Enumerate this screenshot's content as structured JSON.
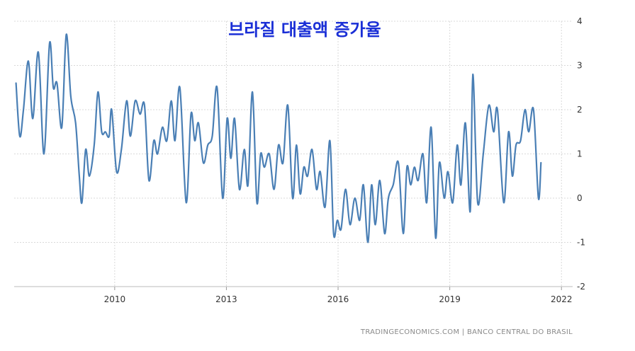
{
  "chart_data": {
    "type": "line",
    "title": "브라질 대출액 증가율",
    "xlabel": "",
    "ylabel": "",
    "x_ticks": [
      "2010",
      "2013",
      "2016",
      "2019",
      "2022"
    ],
    "y_ticks": [
      "-2",
      "-1",
      "0",
      "1",
      "2",
      "3",
      "4"
    ],
    "xlim": [
      2007.3,
      2022.3
    ],
    "ylim": [
      -2,
      4
    ],
    "grid": true,
    "y_axis_side": "right",
    "line_color": "#4a7fb5",
    "series": [
      {
        "values": [
          [
            2007.35,
            2.6
          ],
          [
            2007.45,
            1.4
          ],
          [
            2007.55,
            2.0
          ],
          [
            2007.68,
            3.1
          ],
          [
            2007.8,
            1.8
          ],
          [
            2007.95,
            3.3
          ],
          [
            2008.1,
            1.0
          ],
          [
            2008.25,
            3.5
          ],
          [
            2008.35,
            2.5
          ],
          [
            2008.45,
            2.6
          ],
          [
            2008.58,
            1.6
          ],
          [
            2008.7,
            3.7
          ],
          [
            2008.82,
            2.3
          ],
          [
            2008.95,
            1.7
          ],
          [
            2009.05,
            0.5
          ],
          [
            2009.12,
            -0.1
          ],
          [
            2009.22,
            1.1
          ],
          [
            2009.32,
            0.5
          ],
          [
            2009.45,
            1.2
          ],
          [
            2009.55,
            2.4
          ],
          [
            2009.65,
            1.5
          ],
          [
            2009.75,
            1.5
          ],
          [
            2009.85,
            1.4
          ],
          [
            2009.92,
            2.0
          ],
          [
            2010.05,
            0.6
          ],
          [
            2010.18,
            1.1
          ],
          [
            2010.32,
            2.2
          ],
          [
            2010.42,
            1.4
          ],
          [
            2010.55,
            2.2
          ],
          [
            2010.68,
            1.9
          ],
          [
            2010.8,
            2.1
          ],
          [
            2010.92,
            0.4
          ],
          [
            2011.05,
            1.3
          ],
          [
            2011.15,
            1.0
          ],
          [
            2011.28,
            1.6
          ],
          [
            2011.4,
            1.3
          ],
          [
            2011.52,
            2.2
          ],
          [
            2011.62,
            1.3
          ],
          [
            2011.75,
            2.5
          ],
          [
            2011.92,
            -0.1
          ],
          [
            2012.05,
            1.9
          ],
          [
            2012.15,
            1.3
          ],
          [
            2012.25,
            1.7
          ],
          [
            2012.38,
            0.8
          ],
          [
            2012.5,
            1.2
          ],
          [
            2012.62,
            1.4
          ],
          [
            2012.75,
            2.5
          ],
          [
            2012.9,
            0.0
          ],
          [
            2013.02,
            1.8
          ],
          [
            2013.12,
            0.9
          ],
          [
            2013.22,
            1.8
          ],
          [
            2013.35,
            0.2
          ],
          [
            2013.48,
            1.1
          ],
          [
            2013.58,
            0.3
          ],
          [
            2013.7,
            2.4
          ],
          [
            2013.82,
            -0.1
          ],
          [
            2013.92,
            1.0
          ],
          [
            2014.02,
            0.7
          ],
          [
            2014.15,
            1.0
          ],
          [
            2014.28,
            0.2
          ],
          [
            2014.4,
            1.2
          ],
          [
            2014.52,
            0.8
          ],
          [
            2014.65,
            2.1
          ],
          [
            2014.78,
            0.0
          ],
          [
            2014.88,
            1.2
          ],
          [
            2014.98,
            0.1
          ],
          [
            2015.08,
            0.7
          ],
          [
            2015.18,
            0.5
          ],
          [
            2015.3,
            1.1
          ],
          [
            2015.42,
            0.2
          ],
          [
            2015.52,
            0.6
          ],
          [
            2015.65,
            -0.2
          ],
          [
            2015.78,
            1.3
          ],
          [
            2015.88,
            -0.8
          ],
          [
            2015.98,
            -0.5
          ],
          [
            2016.08,
            -0.7
          ],
          [
            2016.2,
            0.2
          ],
          [
            2016.32,
            -0.6
          ],
          [
            2016.45,
            0.0
          ],
          [
            2016.58,
            -0.5
          ],
          [
            2016.68,
            0.3
          ],
          [
            2016.8,
            -1.0
          ],
          [
            2016.9,
            0.3
          ],
          [
            2017.0,
            -0.6
          ],
          [
            2017.12,
            0.4
          ],
          [
            2017.25,
            -0.8
          ],
          [
            2017.35,
            0.0
          ],
          [
            2017.48,
            0.3
          ],
          [
            2017.62,
            0.8
          ],
          [
            2017.75,
            -0.8
          ],
          [
            2017.85,
            0.7
          ],
          [
            2017.95,
            0.3
          ],
          [
            2018.05,
            0.7
          ],
          [
            2018.15,
            0.4
          ],
          [
            2018.28,
            1.0
          ],
          [
            2018.38,
            -0.1
          ],
          [
            2018.5,
            1.6
          ],
          [
            2018.62,
            -0.9
          ],
          [
            2018.72,
            0.8
          ],
          [
            2018.85,
            0.0
          ],
          [
            2018.95,
            0.6
          ],
          [
            2019.08,
            -0.1
          ],
          [
            2019.2,
            1.2
          ],
          [
            2019.3,
            0.3
          ],
          [
            2019.42,
            1.7
          ],
          [
            2019.55,
            -0.3
          ],
          [
            2019.62,
            2.8
          ],
          [
            2019.75,
            -0.1
          ],
          [
            2019.9,
            1.0
          ],
          [
            2020.05,
            2.1
          ],
          [
            2020.18,
            1.5
          ],
          [
            2020.28,
            2.0
          ],
          [
            2020.45,
            -0.1
          ],
          [
            2020.58,
            1.5
          ],
          [
            2020.68,
            0.5
          ],
          [
            2020.78,
            1.2
          ],
          [
            2020.9,
            1.3
          ],
          [
            2021.02,
            2.0
          ],
          [
            2021.12,
            1.5
          ],
          [
            2021.25,
            2.0
          ],
          [
            2021.38,
            0.0
          ],
          [
            2021.45,
            0.8
          ]
        ]
      }
    ]
  },
  "footer": {
    "source_credit": "TRADINGECONOMICS.COM  |  BANCO CENTRAL DO BRASIL"
  }
}
